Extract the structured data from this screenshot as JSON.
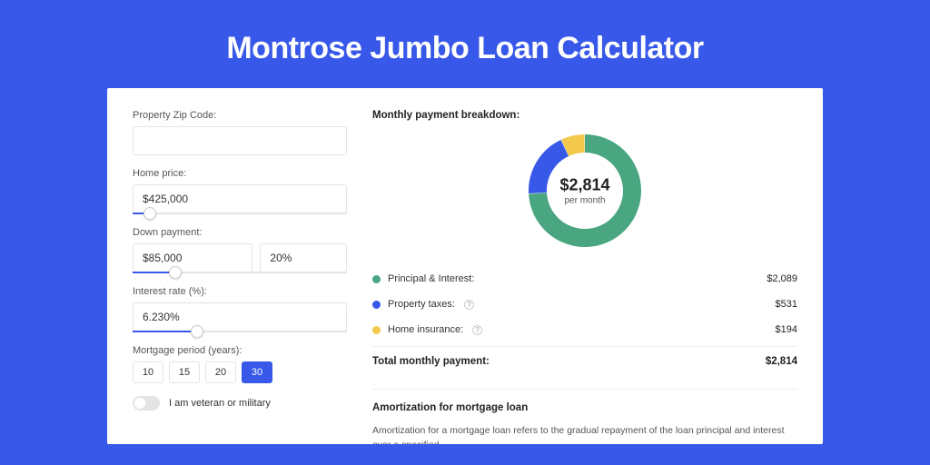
{
  "page": {
    "title": "Montrose Jumbo Loan Calculator",
    "background_color": "#3858e9",
    "card_background": "#ffffff"
  },
  "form": {
    "zip": {
      "label": "Property Zip Code:",
      "value": ""
    },
    "home_price": {
      "label": "Home price:",
      "value": "$425,000",
      "slider_pct": 8
    },
    "down_payment": {
      "label": "Down payment:",
      "amount": "$85,000",
      "pct": "20%",
      "slider_pct": 20
    },
    "interest_rate": {
      "label": "Interest rate (%):",
      "value": "6.230%",
      "slider_pct": 30
    },
    "mortgage_period": {
      "label": "Mortgage period (years):",
      "options": [
        "10",
        "15",
        "20",
        "30"
      ],
      "selected": "30"
    },
    "veteran": {
      "label": "I am veteran or military",
      "value": false
    }
  },
  "breakdown": {
    "title": "Monthly payment breakdown:",
    "donut": {
      "center_amount": "$2,814",
      "center_sub": "per month",
      "slices": [
        {
          "label": "Principal & Interest",
          "value": 2089,
          "color": "#49a680"
        },
        {
          "label": "Property taxes",
          "value": 531,
          "color": "#3858e9"
        },
        {
          "label": "Home insurance",
          "value": 194,
          "color": "#f2c94c"
        }
      ],
      "ring_width": 20,
      "radius": 62
    },
    "rows": [
      {
        "dot_color": "#49a680",
        "label": "Principal & Interest:",
        "info": false,
        "value": "$2,089"
      },
      {
        "dot_color": "#3858e9",
        "label": "Property taxes:",
        "info": true,
        "value": "$531"
      },
      {
        "dot_color": "#f2c94c",
        "label": "Home insurance:",
        "info": true,
        "value": "$194"
      }
    ],
    "total": {
      "label": "Total monthly payment:",
      "value": "$2,814"
    }
  },
  "amortization": {
    "title": "Amortization for mortgage loan",
    "desc": "Amortization for a mortgage loan refers to the gradual repayment of the loan principal and interest over a specified"
  }
}
